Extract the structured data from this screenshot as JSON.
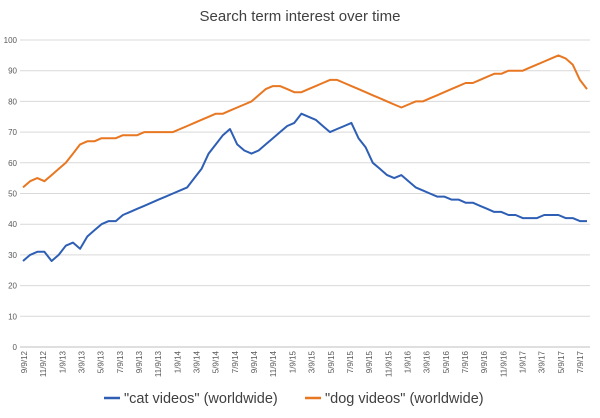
{
  "chart_data": {
    "type": "line",
    "title": "Search term interest over time",
    "xlabel": "",
    "ylabel": "",
    "ylim": [
      0,
      100
    ],
    "y_ticks": [
      0,
      10,
      20,
      30,
      40,
      50,
      60,
      70,
      80,
      90,
      100
    ],
    "x_tick_labels": [
      "9/9/12",
      "11/9/12",
      "1/9/13",
      "3/9/13",
      "5/9/13",
      "7/9/13",
      "9/9/13",
      "11/9/13",
      "1/9/14",
      "3/9/14",
      "5/9/14",
      "7/9/14",
      "9/9/14",
      "11/9/14",
      "1/9/15",
      "3/9/15",
      "5/9/15",
      "7/9/15",
      "9/9/15",
      "11/9/15",
      "1/9/16",
      "3/9/16",
      "5/9/16",
      "7/9/16",
      "9/9/16",
      "11/9/16",
      "1/9/17",
      "3/9/17",
      "5/9/17",
      "7/9/17"
    ],
    "grid": true,
    "legend_position": "bottom",
    "series": [
      {
        "name": "\"cat videos\" (worldwide)",
        "color": "#2e5fb5",
        "values": [
          28,
          30,
          31,
          31,
          28,
          30,
          33,
          34,
          32,
          36,
          38,
          40,
          41,
          41,
          43,
          44,
          45,
          46,
          47,
          48,
          49,
          50,
          51,
          52,
          55,
          58,
          63,
          66,
          69,
          71,
          66,
          64,
          63,
          64,
          66,
          68,
          70,
          72,
          73,
          76,
          75,
          74,
          72,
          70,
          71,
          72,
          73,
          68,
          65,
          60,
          58,
          56,
          55,
          56,
          54,
          52,
          51,
          50,
          49,
          49,
          48,
          48,
          47,
          47,
          46,
          45,
          44,
          44,
          43,
          43,
          42,
          42,
          42,
          43,
          43,
          43,
          42,
          42,
          41,
          41
        ]
      },
      {
        "name": "\"dog videos\" (worldwide)",
        "color": "#e87722",
        "values": [
          52,
          54,
          55,
          54,
          56,
          58,
          60,
          63,
          66,
          67,
          67,
          68,
          68,
          68,
          69,
          69,
          69,
          70,
          70,
          70,
          70,
          70,
          71,
          72,
          73,
          74,
          75,
          76,
          76,
          77,
          78,
          79,
          80,
          82,
          84,
          85,
          85,
          84,
          83,
          83,
          84,
          85,
          86,
          87,
          87,
          86,
          85,
          84,
          83,
          82,
          81,
          80,
          79,
          78,
          79,
          80,
          80,
          81,
          82,
          83,
          84,
          85,
          86,
          86,
          87,
          88,
          89,
          89,
          90,
          90,
          90,
          91,
          92,
          93,
          94,
          95,
          94,
          92,
          87,
          84
        ]
      }
    ]
  }
}
